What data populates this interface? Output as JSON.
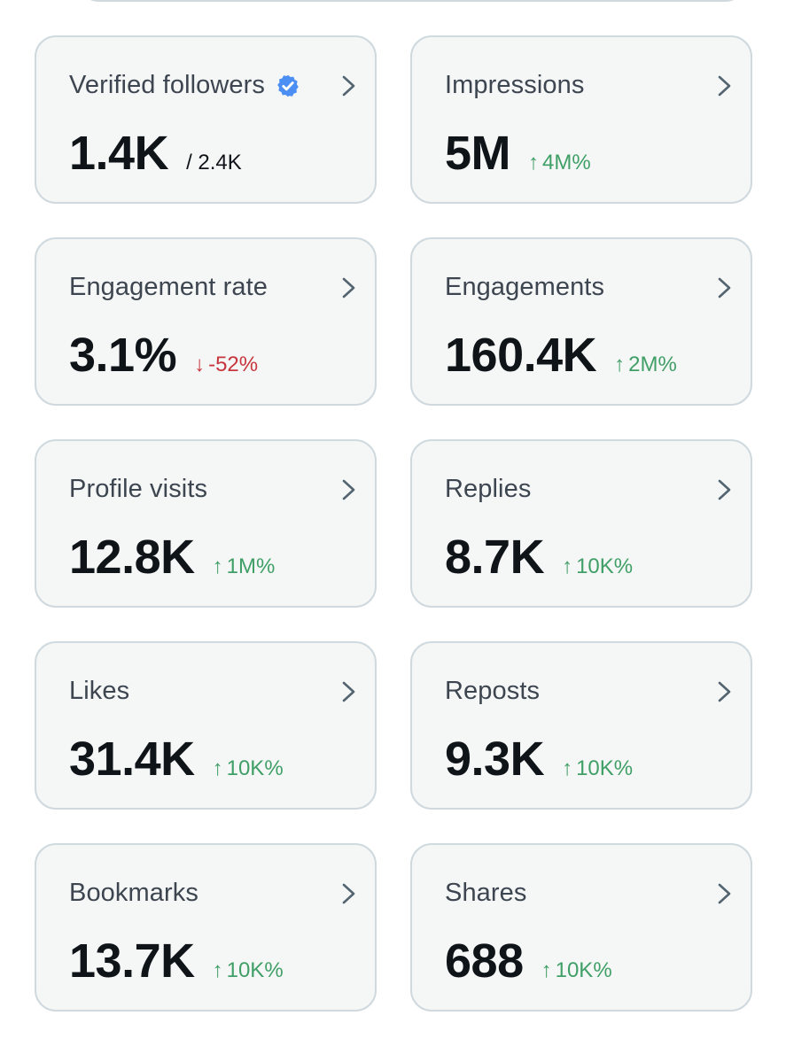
{
  "colors": {
    "card_bg": "#f5f6f6",
    "card_border": "#cfd9de",
    "label": "#3d4650",
    "value": "#0f1419",
    "up": "#3f9f66",
    "down": "#c7363d",
    "verified": "#4b8ff4"
  },
  "metrics": [
    {
      "label": "Verified followers",
      "value": "1.4K",
      "total": "/ 2.4K",
      "icon": "verified-badge-icon"
    },
    {
      "label": "Impressions",
      "value": "5M",
      "delta": "4M%",
      "arrow": "↑"
    },
    {
      "label": "Engagement rate",
      "value": "3.1%",
      "delta": "-52%",
      "arrow": "↓"
    },
    {
      "label": "Engagements",
      "value": "160.4K",
      "delta": "2M%",
      "arrow": "↑"
    },
    {
      "label": "Profile visits",
      "value": "12.8K",
      "delta": "1M%",
      "arrow": "↑"
    },
    {
      "label": "Replies",
      "value": "8.7K",
      "delta": "10K%",
      "arrow": "↑"
    },
    {
      "label": "Likes",
      "value": "31.4K",
      "delta": "10K%",
      "arrow": "↑"
    },
    {
      "label": "Reposts",
      "value": "9.3K",
      "delta": "10K%",
      "arrow": "↑"
    },
    {
      "label": "Bookmarks",
      "value": "13.7K",
      "delta": "10K%",
      "arrow": "↑"
    },
    {
      "label": "Shares",
      "value": "688",
      "delta": "10K%",
      "arrow": "↑"
    }
  ]
}
